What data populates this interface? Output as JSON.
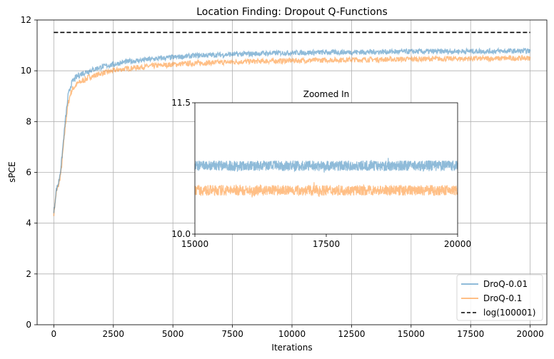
{
  "chart_data": {
    "type": "line",
    "title": "Location Finding: Dropout Q-Functions",
    "xlabel": "Iterations",
    "ylabel": "sPCE",
    "xlim": [
      -700,
      20700
    ],
    "ylim": [
      0,
      12
    ],
    "xticks": [
      0,
      2500,
      5000,
      7500,
      10000,
      12500,
      15000,
      17500,
      20000
    ],
    "xtick_labels": [
      "0",
      "2500",
      "5000",
      "7500",
      "10000",
      "12500",
      "15000",
      "17500",
      "20000"
    ],
    "yticks": [
      0,
      2,
      4,
      6,
      8,
      10,
      12
    ],
    "ytick_labels": [
      "0",
      "2",
      "4",
      "6",
      "8",
      "10",
      "12"
    ],
    "grid": true,
    "legend_position": "lower-right",
    "series": [
      {
        "name": "DroQ-0.01",
        "color": "#1f77b4",
        "x": [
          0,
          100,
          200,
          300,
          400,
          500,
          600,
          700,
          800,
          1000,
          1200,
          1500,
          2000,
          2500,
          3000,
          4000,
          5000,
          6000,
          7000,
          8000,
          9000,
          10000,
          12000,
          14000,
          16000,
          18000,
          20000
        ],
        "y": [
          4.4,
          5.3,
          5.6,
          6.2,
          7.2,
          8.2,
          9.0,
          9.4,
          9.6,
          9.8,
          9.9,
          10.0,
          10.15,
          10.25,
          10.35,
          10.45,
          10.53,
          10.6,
          10.63,
          10.66,
          10.69,
          10.71,
          10.73,
          10.75,
          10.76,
          10.77,
          10.78
        ]
      },
      {
        "name": "DroQ-0.1",
        "color": "#ff7f0e",
        "x": [
          0,
          100,
          200,
          300,
          400,
          500,
          600,
          700,
          800,
          1000,
          1200,
          1500,
          2000,
          2500,
          3000,
          4000,
          5000,
          6000,
          7000,
          8000,
          9000,
          10000,
          12000,
          14000,
          16000,
          18000,
          20000
        ],
        "y": [
          4.4,
          5.2,
          5.5,
          6.0,
          7.0,
          8.0,
          8.7,
          9.1,
          9.3,
          9.5,
          9.6,
          9.75,
          9.9,
          10.0,
          10.08,
          10.18,
          10.25,
          10.3,
          10.33,
          10.36,
          10.38,
          10.4,
          10.43,
          10.45,
          10.47,
          10.48,
          10.5
        ]
      },
      {
        "name": "log(100001)",
        "color": "#000000",
        "style": "dashed",
        "x": [
          0,
          20000
        ],
        "y": [
          11.51,
          11.51
        ]
      }
    ],
    "inset": {
      "title": "Zoomed In",
      "xlim": [
        15000,
        20000
      ],
      "ylim": [
        10.0,
        11.5
      ],
      "xticks": [
        15000,
        17500,
        20000
      ],
      "xtick_labels": [
        "15000",
        "17500",
        "20000"
      ],
      "yticks": [
        10.0,
        11.5
      ],
      "ytick_labels": [
        "10.0",
        "11.5"
      ],
      "series": [
        {
          "name": "DroQ-0.01",
          "mean": 10.78,
          "noise": 0.06
        },
        {
          "name": "DroQ-0.1",
          "mean": 10.5,
          "noise": 0.06
        }
      ]
    }
  }
}
